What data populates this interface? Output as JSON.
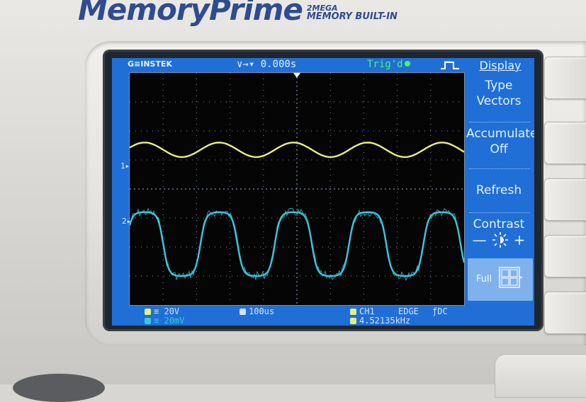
{
  "brand": {
    "name": "MemoryPrime",
    "sub_line1": "2MEGA",
    "sub_line2": "MEMORY BUILT-IN"
  },
  "header": {
    "logo": "G≡INSTEK",
    "timebase_position": "∨→▾ 0.000s",
    "trigger_status": "Trig'd"
  },
  "channel_markers": {
    "ch1": "1▸",
    "ch2": "2▸"
  },
  "menu": {
    "title": "Display",
    "type_label": "Type",
    "type_value": "Vectors",
    "accumulate_label": "Accumulate",
    "accumulate_value": "Off",
    "refresh_label": "Refresh",
    "contrast_label": "Contrast",
    "contrast_minus": "—",
    "contrast_plus": "+",
    "full_label": "Full"
  },
  "status": {
    "ch1_scale": "20V",
    "ch2_scale": "20mV",
    "timebase": "100us",
    "trigger_source": "CH1",
    "trigger_type": "EDGE",
    "coupling": "DC",
    "frequency": "4.52135kHz"
  },
  "colors": {
    "screen_bg": "#1f6fd6",
    "ch1_trace": "#e9f07a",
    "ch2_trace": "#38c8e0",
    "grid": "#7f92b0",
    "trig_green": "#4cf46a"
  },
  "waveform_data": {
    "ch1": {
      "type": "sine",
      "cycles": 4.5,
      "amplitude_div": 0.25,
      "offset_div": 0
    },
    "ch2": {
      "type": "rounded-square",
      "cycles": 4.5,
      "amplitude_div": 1.1,
      "offset_div": 0,
      "noise": true
    }
  }
}
